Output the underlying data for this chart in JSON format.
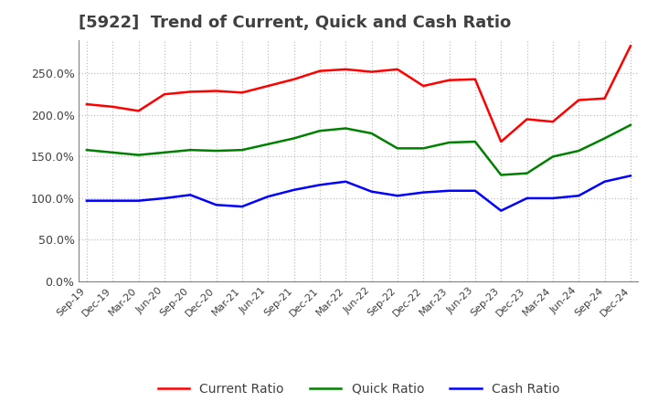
{
  "title": "[5922]  Trend of Current, Quick and Cash Ratio",
  "title_color": "#404040",
  "background_color": "#ffffff",
  "plot_background_color": "#ffffff",
  "grid_color": "#c0c0c0",
  "x_labels": [
    "Sep-19",
    "Dec-19",
    "Mar-20",
    "Jun-20",
    "Sep-20",
    "Dec-20",
    "Mar-21",
    "Jun-21",
    "Sep-21",
    "Dec-21",
    "Mar-22",
    "Jun-22",
    "Sep-22",
    "Dec-22",
    "Mar-23",
    "Jun-23",
    "Sep-23",
    "Dec-23",
    "Mar-24",
    "Jun-24",
    "Sep-24",
    "Dec-24"
  ],
  "current_ratio": [
    213,
    210,
    205,
    225,
    228,
    229,
    227,
    235,
    243,
    253,
    255,
    252,
    255,
    235,
    242,
    243,
    168,
    195,
    192,
    218,
    220,
    283
  ],
  "quick_ratio": [
    158,
    155,
    152,
    155,
    158,
    157,
    158,
    165,
    172,
    181,
    184,
    178,
    160,
    160,
    167,
    168,
    128,
    130,
    150,
    157,
    172,
    188
  ],
  "cash_ratio": [
    97,
    97,
    97,
    100,
    104,
    92,
    90,
    102,
    110,
    116,
    120,
    108,
    103,
    107,
    109,
    109,
    85,
    100,
    100,
    103,
    120,
    127
  ],
  "current_color": "#ff0000",
  "quick_color": "#008000",
  "cash_color": "#0000ff",
  "ylim": [
    0,
    290
  ],
  "yticks": [
    0,
    50,
    100,
    150,
    200,
    250
  ],
  "line_width": 1.8,
  "legend_fontsize": 10,
  "title_fontsize": 13
}
